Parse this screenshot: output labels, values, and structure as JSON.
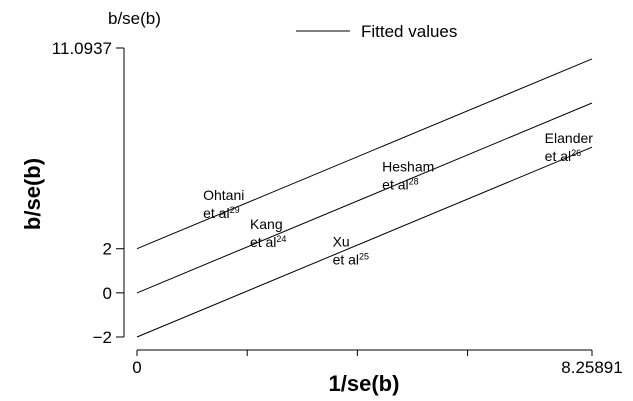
{
  "chart_data": {
    "type": "line",
    "top_label": "b/se(b)",
    "xlabel": "1/se(b)",
    "ylabel": "b/se(b)",
    "xlim": [
      0,
      8.25891
    ],
    "ylim": [
      -2,
      11.0937
    ],
    "x_ticks": [
      {
        "value": 0,
        "label": "0"
      },
      {
        "value": 2,
        "label": ""
      },
      {
        "value": 4,
        "label": ""
      },
      {
        "value": 6,
        "label": ""
      },
      {
        "value": 8.25891,
        "label": "8.25891"
      }
    ],
    "y_ticks": [
      {
        "value": -2,
        "label": "−2"
      },
      {
        "value": 0,
        "label": "0"
      },
      {
        "value": 2,
        "label": "2"
      },
      {
        "value": 11.0937,
        "label": "11.0937"
      }
    ],
    "legend": {
      "position": "top",
      "entries": [
        "Fitted values"
      ]
    },
    "series": [
      {
        "name": "Fitted values",
        "x": [
          0,
          8.25891
        ],
        "y": [
          2,
          10.6
        ]
      },
      {
        "x": [
          0,
          8.25891
        ],
        "y": [
          0,
          8.6
        ]
      },
      {
        "x": [
          0,
          8.25891
        ],
        "y": [
          -2,
          6.6
        ]
      }
    ],
    "annotations": [
      {
        "name": "Ohtani",
        "ref": "29",
        "x": 1.2,
        "y": 4.2
      },
      {
        "name": "Kang",
        "ref": "24",
        "x": 2.05,
        "y": 2.9
      },
      {
        "name": "Hesham",
        "ref": "28",
        "x": 4.45,
        "y": 5.5
      },
      {
        "name": "Xu",
        "ref": "25",
        "x": 3.55,
        "y": 2.1
      },
      {
        "name": "Elander",
        "ref": "26",
        "x": 7.4,
        "y": 6.8
      }
    ]
  }
}
